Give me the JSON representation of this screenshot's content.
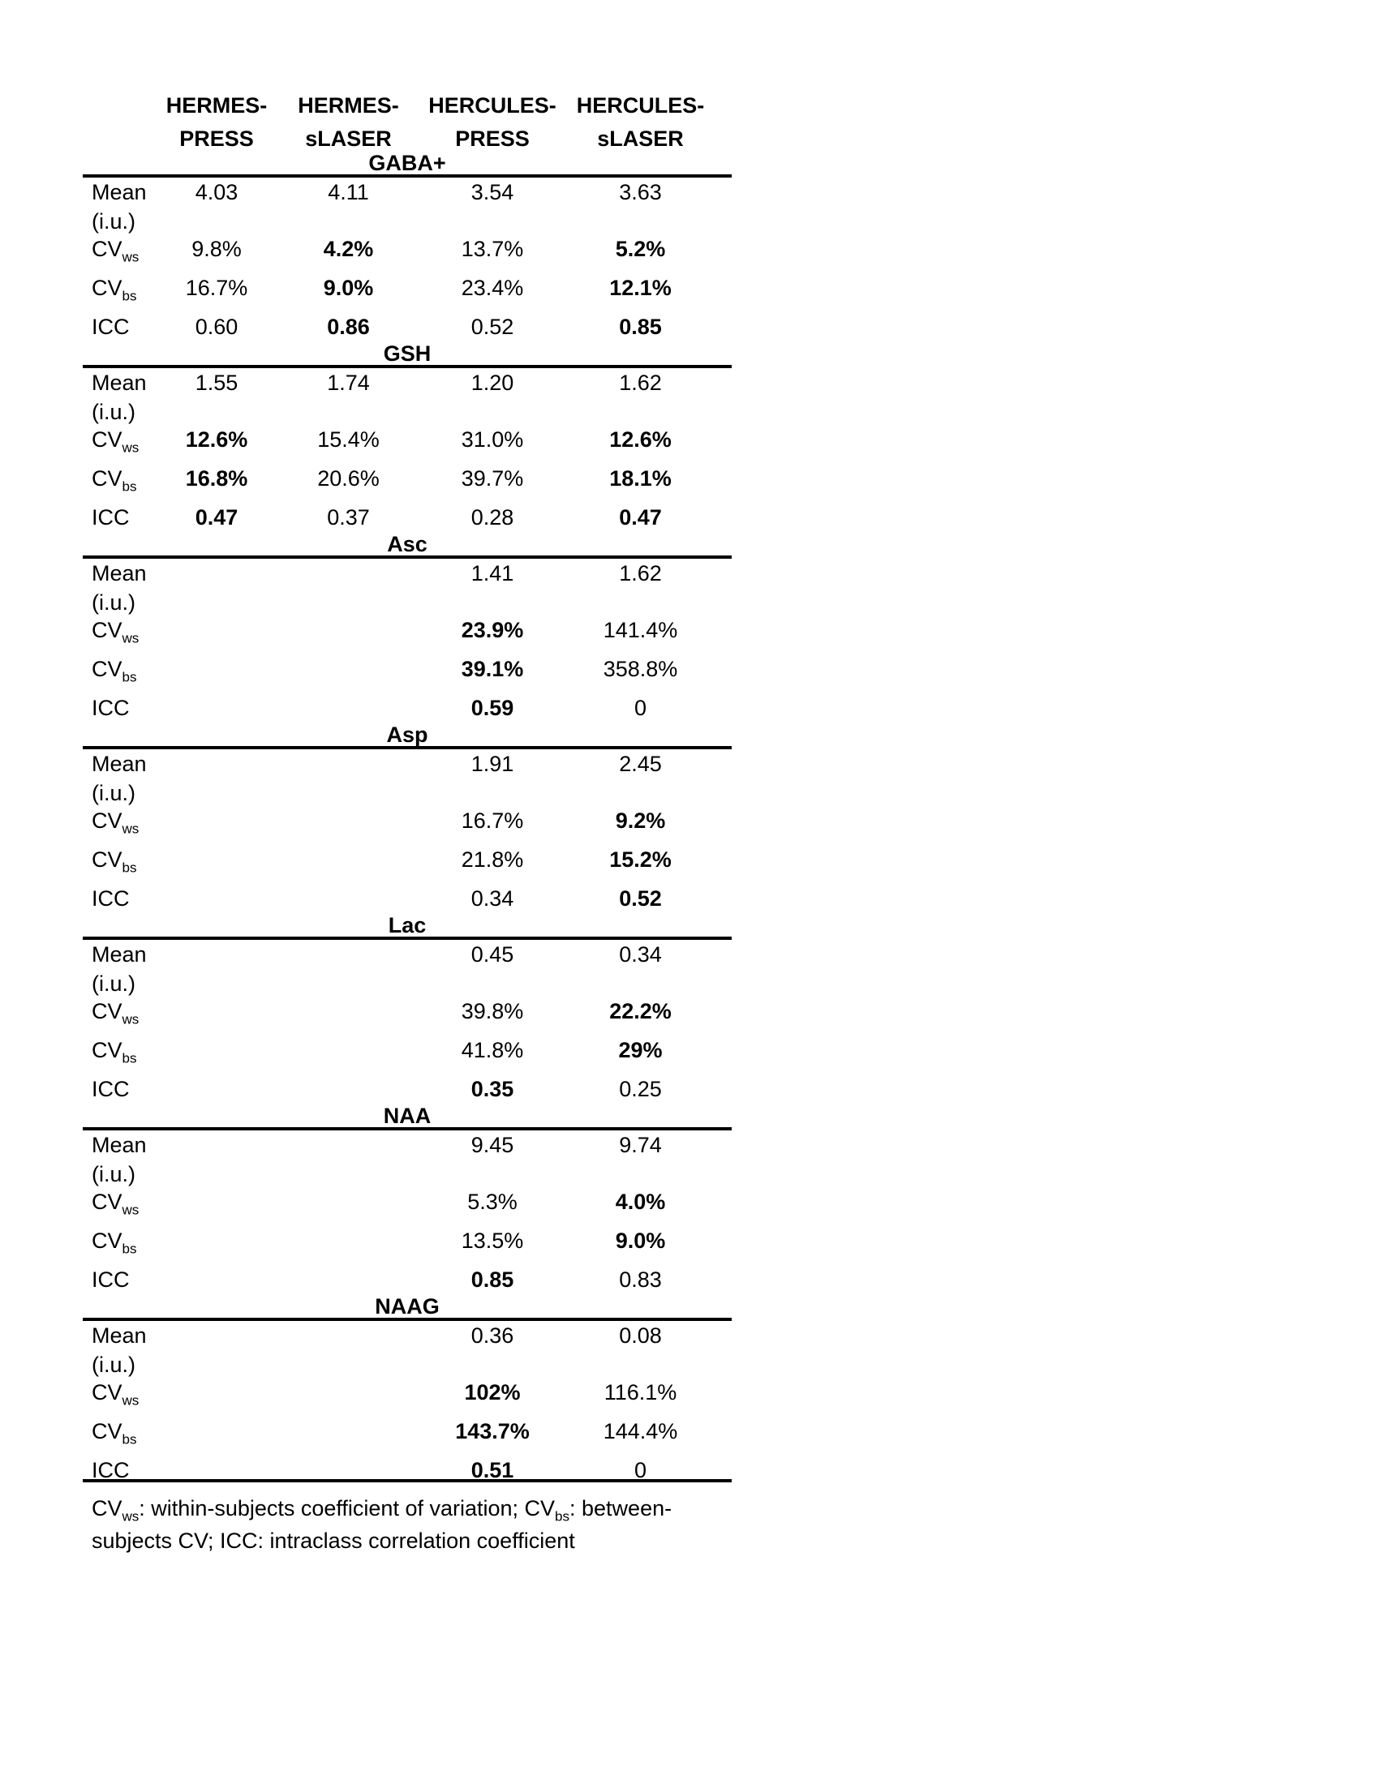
{
  "page": {
    "background": "#ffffff",
    "text_color": "#000000"
  },
  "table": {
    "column_headers": [
      {
        "line1": "HERMES-",
        "line2": "PRESS"
      },
      {
        "line1": "HERMES-",
        "line2": "sLASER"
      },
      {
        "line1": "HERCULES-",
        "line2": "PRESS"
      },
      {
        "line1": "HERCULES-",
        "line2": "sLASER"
      }
    ],
    "row_labels": {
      "mean": {
        "line1": "Mean",
        "line2": "(i.u.)"
      },
      "cvws": {
        "base": "CV",
        "sub": "ws"
      },
      "cvbs": {
        "base": "CV",
        "sub": "bs"
      },
      "icc": {
        "base": "ICC",
        "sub": ""
      }
    },
    "sections": [
      {
        "title": "GABA+",
        "rows": [
          {
            "label": "mean",
            "values": [
              "4.03",
              "4.11",
              "3.54",
              "3.63"
            ],
            "bold": [
              false,
              false,
              false,
              false
            ]
          },
          {
            "label": "cvws",
            "values": [
              "9.8%",
              "4.2%",
              "13.7%",
              "5.2%"
            ],
            "bold": [
              false,
              true,
              false,
              true
            ]
          },
          {
            "label": "cvbs",
            "values": [
              "16.7%",
              "9.0%",
              "23.4%",
              "12.1%"
            ],
            "bold": [
              false,
              true,
              false,
              true
            ]
          },
          {
            "label": "icc",
            "values": [
              "0.60",
              "0.86",
              "0.52",
              "0.85"
            ],
            "bold": [
              false,
              true,
              false,
              true
            ]
          }
        ]
      },
      {
        "title": "GSH",
        "rows": [
          {
            "label": "mean",
            "values": [
              "1.55",
              "1.74",
              "1.20",
              "1.62"
            ],
            "bold": [
              false,
              false,
              false,
              false
            ]
          },
          {
            "label": "cvws",
            "values": [
              "12.6%",
              "15.4%",
              "31.0%",
              "12.6%"
            ],
            "bold": [
              true,
              false,
              false,
              true
            ]
          },
          {
            "label": "cvbs",
            "values": [
              "16.8%",
              "20.6%",
              "39.7%",
              "18.1%"
            ],
            "bold": [
              true,
              false,
              false,
              true
            ]
          },
          {
            "label": "icc",
            "values": [
              "0.47",
              "0.37",
              "0.28",
              "0.47"
            ],
            "bold": [
              true,
              false,
              false,
              true
            ]
          }
        ]
      },
      {
        "title": "Asc",
        "rows": [
          {
            "label": "mean",
            "values": [
              "",
              "",
              "1.41",
              "1.62"
            ],
            "bold": [
              false,
              false,
              false,
              false
            ]
          },
          {
            "label": "cvws",
            "values": [
              "",
              "",
              "23.9%",
              "141.4%"
            ],
            "bold": [
              false,
              false,
              true,
              false
            ]
          },
          {
            "label": "cvbs",
            "values": [
              "",
              "",
              "39.1%",
              "358.8%"
            ],
            "bold": [
              false,
              false,
              true,
              false
            ]
          },
          {
            "label": "icc",
            "values": [
              "",
              "",
              "0.59",
              "0"
            ],
            "bold": [
              false,
              false,
              true,
              false
            ]
          }
        ]
      },
      {
        "title": "Asp",
        "rows": [
          {
            "label": "mean",
            "values": [
              "",
              "",
              "1.91",
              "2.45"
            ],
            "bold": [
              false,
              false,
              false,
              false
            ]
          },
          {
            "label": "cvws",
            "values": [
              "",
              "",
              "16.7%",
              "9.2%"
            ],
            "bold": [
              false,
              false,
              false,
              true
            ]
          },
          {
            "label": "cvbs",
            "values": [
              "",
              "",
              "21.8%",
              "15.2%"
            ],
            "bold": [
              false,
              false,
              false,
              true
            ]
          },
          {
            "label": "icc",
            "values": [
              "",
              "",
              "0.34",
              "0.52"
            ],
            "bold": [
              false,
              false,
              false,
              true
            ]
          }
        ]
      },
      {
        "title": "Lac",
        "rows": [
          {
            "label": "mean",
            "values": [
              "",
              "",
              "0.45",
              "0.34"
            ],
            "bold": [
              false,
              false,
              false,
              false
            ]
          },
          {
            "label": "cvws",
            "values": [
              "",
              "",
              "39.8%",
              "22.2%"
            ],
            "bold": [
              false,
              false,
              false,
              true
            ]
          },
          {
            "label": "cvbs",
            "values": [
              "",
              "",
              "41.8%",
              "29%"
            ],
            "bold": [
              false,
              false,
              false,
              true
            ]
          },
          {
            "label": "icc",
            "values": [
              "",
              "",
              "0.35",
              "0.25"
            ],
            "bold": [
              false,
              false,
              true,
              false
            ]
          }
        ]
      },
      {
        "title": "NAA",
        "rows": [
          {
            "label": "mean",
            "values": [
              "",
              "",
              "9.45",
              "9.74"
            ],
            "bold": [
              false,
              false,
              false,
              false
            ]
          },
          {
            "label": "cvws",
            "values": [
              "",
              "",
              "5.3%",
              "4.0%"
            ],
            "bold": [
              false,
              false,
              false,
              true
            ]
          },
          {
            "label": "cvbs",
            "values": [
              "",
              "",
              "13.5%",
              "9.0%"
            ],
            "bold": [
              false,
              false,
              false,
              true
            ]
          },
          {
            "label": "icc",
            "values": [
              "",
              "",
              "0.85",
              "0.83"
            ],
            "bold": [
              false,
              false,
              true,
              false
            ]
          }
        ]
      },
      {
        "title": "NAAG",
        "rows": [
          {
            "label": "mean",
            "values": [
              "",
              "",
              "0.36",
              "0.08"
            ],
            "bold": [
              false,
              false,
              false,
              false
            ]
          },
          {
            "label": "cvws",
            "values": [
              "",
              "",
              "102%",
              "116.1%"
            ],
            "bold": [
              false,
              false,
              true,
              false
            ]
          },
          {
            "label": "cvbs",
            "values": [
              "",
              "",
              "143.7%",
              "144.4%"
            ],
            "bold": [
              false,
              false,
              true,
              false
            ]
          },
          {
            "label": "icc",
            "values": [
              "",
              "",
              "0.51",
              "0"
            ],
            "bold": [
              false,
              false,
              true,
              false
            ]
          }
        ]
      }
    ],
    "footnote": {
      "cv1_base": "CV",
      "cv1_sub": "ws",
      "seg1": ": within-subjects coefficient of variation; ",
      "cv2_base": "CV",
      "cv2_sub": "bs",
      "seg2": ": between-",
      "line2": "subjects CV; ICC: intraclass correlation coefficient"
    }
  }
}
